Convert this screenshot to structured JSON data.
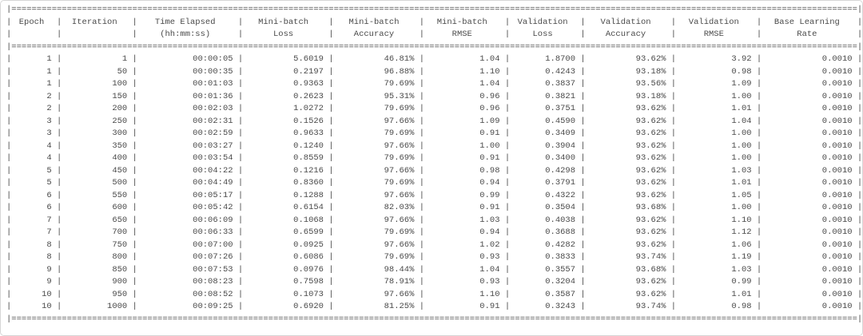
{
  "console": {
    "glyphs": {
      "pipe": "|",
      "fill": "="
    },
    "columns": [
      {
        "id": "epoch",
        "line1": "Epoch",
        "line2": ""
      },
      {
        "id": "iteration",
        "line1": "Iteration",
        "line2": ""
      },
      {
        "id": "time-elapsed",
        "line1": "Time Elapsed",
        "line2": "(hh:mm:ss)"
      },
      {
        "id": "minibatch-loss",
        "line1": "Mini-batch",
        "line2": "Loss"
      },
      {
        "id": "minibatch-accuracy",
        "line1": "Mini-batch",
        "line2": "Accuracy"
      },
      {
        "id": "minibatch-rmse",
        "line1": "Mini-batch",
        "line2": "RMSE"
      },
      {
        "id": "validation-loss",
        "line1": "Validation",
        "line2": "Loss"
      },
      {
        "id": "validation-accuracy",
        "line1": "Validation",
        "line2": "Accuracy"
      },
      {
        "id": "validation-rmse",
        "line1": "Validation",
        "line2": "RMSE"
      },
      {
        "id": "base-learning-rate",
        "line1": "Base Learning",
        "line2": "Rate"
      }
    ],
    "rows": [
      [
        "1",
        "1",
        "00:00:05",
        "5.6019",
        "46.81%",
        "1.04",
        "1.8700",
        "93.62%",
        "3.92",
        "0.0010"
      ],
      [
        "1",
        "50",
        "00:00:35",
        "0.2197",
        "96.88%",
        "1.10",
        "0.4243",
        "93.18%",
        "0.98",
        "0.0010"
      ],
      [
        "1",
        "100",
        "00:01:03",
        "0.9363",
        "79.69%",
        "1.04",
        "0.3837",
        "93.56%",
        "1.09",
        "0.0010"
      ],
      [
        "2",
        "150",
        "00:01:36",
        "0.2623",
        "95.31%",
        "0.96",
        "0.3821",
        "93.18%",
        "1.00",
        "0.0010"
      ],
      [
        "2",
        "200",
        "00:02:03",
        "1.0272",
        "79.69%",
        "0.96",
        "0.3751",
        "93.62%",
        "1.01",
        "0.0010"
      ],
      [
        "3",
        "250",
        "00:02:31",
        "0.1526",
        "97.66%",
        "1.09",
        "0.4590",
        "93.62%",
        "1.04",
        "0.0010"
      ],
      [
        "3",
        "300",
        "00:02:59",
        "0.9633",
        "79.69%",
        "0.91",
        "0.3409",
        "93.62%",
        "1.00",
        "0.0010"
      ],
      [
        "4",
        "350",
        "00:03:27",
        "0.1240",
        "97.66%",
        "1.00",
        "0.3904",
        "93.62%",
        "1.00",
        "0.0010"
      ],
      [
        "4",
        "400",
        "00:03:54",
        "0.8559",
        "79.69%",
        "0.91",
        "0.3400",
        "93.62%",
        "1.00",
        "0.0010"
      ],
      [
        "5",
        "450",
        "00:04:22",
        "0.1216",
        "97.66%",
        "0.98",
        "0.4298",
        "93.62%",
        "1.03",
        "0.0010"
      ],
      [
        "5",
        "500",
        "00:04:49",
        "0.8360",
        "79.69%",
        "0.94",
        "0.3791",
        "93.62%",
        "1.01",
        "0.0010"
      ],
      [
        "6",
        "550",
        "00:05:17",
        "0.1288",
        "97.66%",
        "0.99",
        "0.4322",
        "93.62%",
        "1.05",
        "0.0010"
      ],
      [
        "6",
        "600",
        "00:05:42",
        "0.6154",
        "82.03%",
        "0.91",
        "0.3504",
        "93.68%",
        "1.00",
        "0.0010"
      ],
      [
        "7",
        "650",
        "00:06:09",
        "0.1068",
        "97.66%",
        "1.03",
        "0.4038",
        "93.62%",
        "1.10",
        "0.0010"
      ],
      [
        "7",
        "700",
        "00:06:33",
        "0.6599",
        "79.69%",
        "0.94",
        "0.3688",
        "93.62%",
        "1.12",
        "0.0010"
      ],
      [
        "8",
        "750",
        "00:07:00",
        "0.0925",
        "97.66%",
        "1.02",
        "0.4282",
        "93.62%",
        "1.06",
        "0.0010"
      ],
      [
        "8",
        "800",
        "00:07:26",
        "0.6086",
        "79.69%",
        "0.93",
        "0.3833",
        "93.74%",
        "1.19",
        "0.0010"
      ],
      [
        "9",
        "850",
        "00:07:53",
        "0.0976",
        "98.44%",
        "1.04",
        "0.3557",
        "93.68%",
        "1.03",
        "0.0010"
      ],
      [
        "9",
        "900",
        "00:08:23",
        "0.7598",
        "78.91%",
        "0.93",
        "0.3204",
        "93.62%",
        "0.99",
        "0.0010"
      ],
      [
        "10",
        "950",
        "00:08:52",
        "0.1073",
        "97.66%",
        "1.10",
        "0.3587",
        "93.62%",
        "1.01",
        "0.0010"
      ],
      [
        "10",
        "1000",
        "00:09:25",
        "0.6920",
        "81.25%",
        "0.91",
        "0.3243",
        "93.74%",
        "0.98",
        "0.0010"
      ]
    ]
  }
}
